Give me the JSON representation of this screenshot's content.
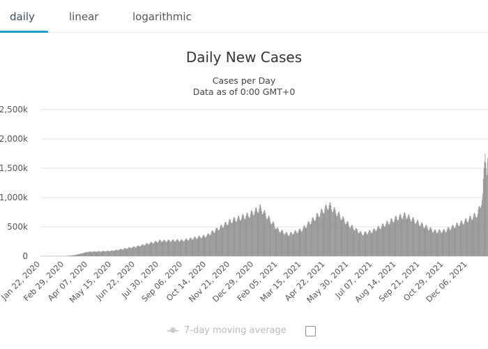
{
  "tabs": [
    {
      "label": "daily",
      "active": true
    },
    {
      "label": "linear",
      "active": false
    },
    {
      "label": "logarithmic",
      "active": false
    }
  ],
  "colors": {
    "accent": "#1fa1d6",
    "bars": "#8c8c8c",
    "grid": "#e6e6e6"
  },
  "legend": {
    "label": "7-day moving average",
    "checked": false
  },
  "chart_data": {
    "type": "bar",
    "title": "Daily New Cases",
    "subtitle": "Cases per Day",
    "subtitle2": "Data as of 0:00 GMT+0",
    "xlabel": "",
    "ylabel": "",
    "ylim": [
      0,
      2500000
    ],
    "y_ticks": [
      "0",
      "500k",
      "1,000k",
      "1,500k",
      "2,000k",
      "2,500k"
    ],
    "x_start": "Jan 22, 2020",
    "x_end": "Jan 08, 2022",
    "x_tick_labels": [
      "Jan 22, 2020",
      "Feb 29, 2020",
      "Apr 07, 2020",
      "May 15, 2020",
      "Jun 22, 2020",
      "Jul 30, 2020",
      "Sep 06, 2020",
      "Oct 14, 2020",
      "Nov 21, 2020",
      "Dec 29, 2020",
      "Feb 05, 2021",
      "Mar 15, 2021",
      "Apr 22, 2021",
      "May 30, 2021",
      "Jul 07, 2021",
      "Aug 14, 2021",
      "Sep 21, 2021",
      "Oct 29, 2021",
      "Dec 06, 2021"
    ],
    "series": [
      {
        "values": [
          {
            "date": "Jan 22, 2020",
            "value": 0
          },
          {
            "date": "Feb 29, 2020",
            "value": 2000
          },
          {
            "date": "Mar 15, 2020",
            "value": 15000
          },
          {
            "date": "Apr 07, 2020",
            "value": 75000
          },
          {
            "date": "May 15, 2020",
            "value": 90000
          },
          {
            "date": "Jun 22, 2020",
            "value": 160000
          },
          {
            "date": "Jul 30, 2020",
            "value": 260000
          },
          {
            "date": "Sep 06, 2020",
            "value": 270000
          },
          {
            "date": "Oct 14, 2020",
            "value": 350000
          },
          {
            "date": "Nov 21, 2020",
            "value": 600000
          },
          {
            "date": "Dec 20, 2020",
            "value": 700000
          },
          {
            "date": "Jan 08, 2021",
            "value": 820000
          },
          {
            "date": "Feb 05, 2021",
            "value": 450000
          },
          {
            "date": "Feb 22, 2021",
            "value": 370000
          },
          {
            "date": "Mar 15, 2021",
            "value": 450000
          },
          {
            "date": "Apr 05, 2021",
            "value": 650000
          },
          {
            "date": "Apr 28, 2021",
            "value": 870000
          },
          {
            "date": "May 30, 2021",
            "value": 530000
          },
          {
            "date": "Jun 20, 2021",
            "value": 380000
          },
          {
            "date": "Jul 07, 2021",
            "value": 430000
          },
          {
            "date": "Aug 14, 2021",
            "value": 650000
          },
          {
            "date": "Aug 28, 2021",
            "value": 700000
          },
          {
            "date": "Sep 21, 2021",
            "value": 550000
          },
          {
            "date": "Oct 15, 2021",
            "value": 420000
          },
          {
            "date": "Oct 29, 2021",
            "value": 430000
          },
          {
            "date": "Dec 06, 2021",
            "value": 620000
          },
          {
            "date": "Dec 22, 2021",
            "value": 720000
          },
          {
            "date": "Dec 30, 2021",
            "value": 1000000
          },
          {
            "date": "Jan 03, 2022",
            "value": 1900000
          },
          {
            "date": "Jan 06, 2022",
            "value": 1300000
          },
          {
            "date": "Jan 08, 2022",
            "value": 1800000
          }
        ]
      }
    ]
  }
}
